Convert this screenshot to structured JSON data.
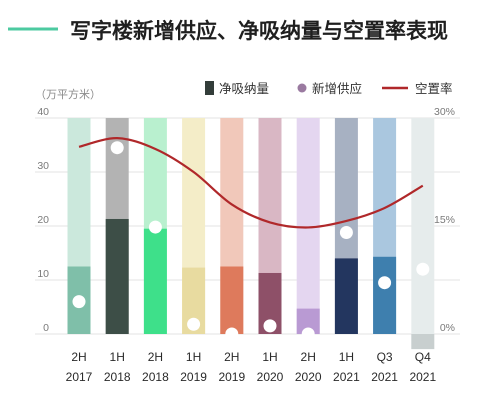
{
  "chart_data": {
    "type": "bar",
    "title": "写字楼新增供应、净吸纳量与空置率表现",
    "unit_label": "（万平方米）",
    "categories": [
      [
        "2H",
        "2017"
      ],
      [
        "1H",
        "2018"
      ],
      [
        "2H",
        "2018"
      ],
      [
        "1H",
        "2019"
      ],
      [
        "2H",
        "2019"
      ],
      [
        "1H",
        "2020"
      ],
      [
        "2H",
        "2020"
      ],
      [
        "1H",
        "2021"
      ],
      [
        "Q3",
        "2021"
      ],
      [
        "Q4",
        "2021"
      ]
    ],
    "series": [
      {
        "name": "净吸纳量",
        "kind": "bar",
        "values": [
          12.5,
          21.3,
          19.5,
          12.3,
          12.5,
          11.3,
          4.7,
          14.0,
          14.3,
          -2.8
        ]
      },
      {
        "name": "新增供应",
        "kind": "dot",
        "values": [
          6.0,
          34.5,
          19.8,
          1.8,
          0.0,
          1.5,
          0.0,
          18.8,
          9.5,
          12.0
        ]
      },
      {
        "name": "空置率",
        "kind": "line",
        "axis": "right",
        "values": [
          26.0,
          27.2,
          25.7,
          22.5,
          18.0,
          15.5,
          14.8,
          15.7,
          17.5,
          20.6
        ]
      }
    ],
    "left_axis": {
      "ticks": [
        "0",
        "10",
        "20",
        "30",
        "40"
      ],
      "min": 0,
      "max": 40
    },
    "right_axis": {
      "ticks": [
        "0%",
        "15%",
        "30%"
      ],
      "min": 0,
      "max": 30
    },
    "legend_position": "top-right",
    "colors": {
      "bar": [
        "#7fbfa9",
        "#3d4e47",
        "#3ee08a",
        "#e8dba0",
        "#de7a5c",
        "#8e5068",
        "#b99ad3",
        "#23365f",
        "#3e7fae",
        "#c8cfcf"
      ],
      "column_bg": [
        "#cbe8dc",
        "#b3b3b3",
        "#b9f0cf",
        "#f4edc8",
        "#f1c8ba",
        "#d9b7c4",
        "#e4d6f0",
        "#a7b1c2",
        "#aac7df",
        "#e6ecec"
      ],
      "dot": "#ffffff",
      "line": "#b0282a",
      "title_accent": "#4ccaa0",
      "legend_bar": "#333d3a",
      "legend_dot": "#9a7aa0",
      "legend_line": "#b0282a"
    }
  }
}
